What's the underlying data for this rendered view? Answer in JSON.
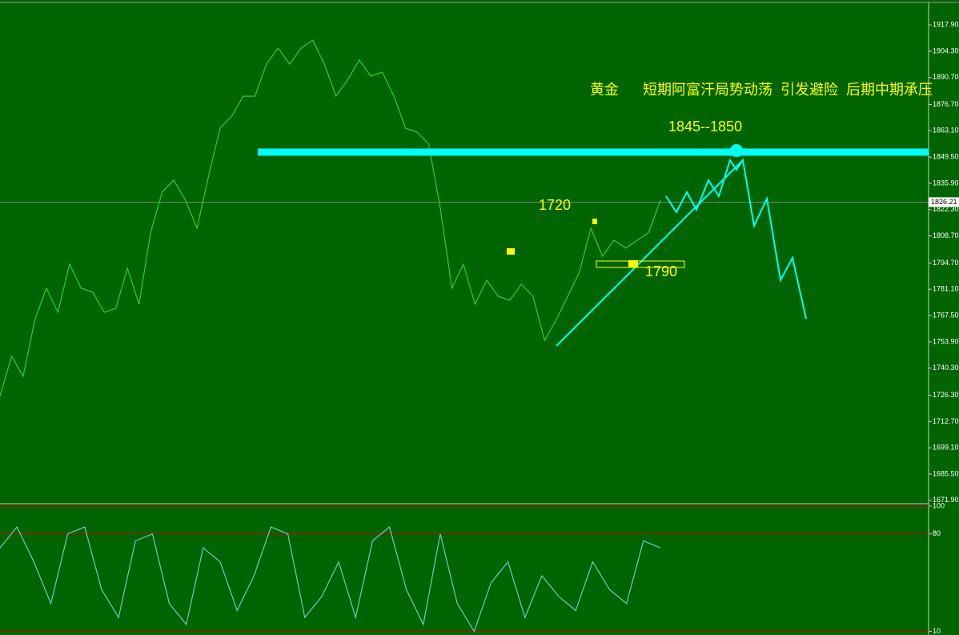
{
  "chart_data": [
    {
      "type": "line",
      "series": [
        {
          "color": "#33cc33",
          "values": [
            1725.8,
            1746.5,
            1736.1,
            1765.1,
            1781.7,
            1769.2,
            1794.1,
            1781.7,
            1779.6,
            1769.2,
            1771.3,
            1792.0,
            1773.4,
            1810.6,
            1831.4,
            1837.6,
            1827.2,
            1812.7,
            1839.6,
            1864.5,
            1870.7,
            1881.0,
            1881.0,
            1897.6,
            1905.9,
            1897.6,
            1905.9,
            1910.0,
            1897.6,
            1881.0,
            1889.3,
            1899.7,
            1891.4,
            1893.5,
            1881.0,
            1864.5,
            1862.4,
            1856.2,
            1823.1,
            1781.7,
            1794.1,
            1773.4,
            1785.8,
            1777.5,
            1775.4,
            1783.7,
            1777.5,
            1754.7,
            1765.1,
            1777.5,
            1789.9,
            1812.7,
            1798.2,
            1806.5,
            1802.4,
            1806.5,
            1810.6,
            1827.2
          ]
        }
      ],
      "ylim": [
        1670.6,
        1928.7
      ],
      "yticks": [
        {
          "value": 1917.9,
          "label": "1917.90"
        },
        {
          "value": 1904.3,
          "label": "1904.30"
        },
        {
          "value": 1890.7,
          "label": "1890.70"
        },
        {
          "value": 1876.7,
          "label": "1876.70"
        },
        {
          "value": 1863.1,
          "label": "1863.10"
        },
        {
          "value": 1849.5,
          "label": "1849.50"
        },
        {
          "value": 1835.9,
          "label": "1835.90"
        },
        {
          "value": 1822.3,
          "label": "1822.30"
        },
        {
          "value": 1808.7,
          "label": "1808.70"
        },
        {
          "value": 1794.7,
          "label": "1794.70"
        },
        {
          "value": 1781.1,
          "label": "1781.10"
        },
        {
          "value": 1767.5,
          "label": "1767.50"
        },
        {
          "value": 1753.9,
          "label": "1753.90"
        },
        {
          "value": 1740.3,
          "label": "1740.30"
        },
        {
          "value": 1726.3,
          "label": "1726.30"
        },
        {
          "value": 1712.7,
          "label": "1712.70"
        },
        {
          "value": 1699.1,
          "label": "1699.10"
        },
        {
          "value": 1685.5,
          "label": "1685.50"
        },
        {
          "value": 1671.9,
          "label": "1671.90"
        }
      ],
      "current_price": {
        "value": 1826.21,
        "label": "1826.21"
      },
      "annotations": [
        "黄金      短期阿富汗局势动荡  引发避险  后期中期承压",
        "1845--1850",
        "1720",
        "1790"
      ]
    },
    {
      "type": "line",
      "series": [
        {
          "color": "#66cccc",
          "values": [
            70,
            85,
            60,
            30,
            80,
            85,
            40,
            20,
            75,
            80,
            30,
            15,
            70,
            60,
            25,
            50,
            85,
            80,
            20,
            35,
            60,
            20,
            75,
            85,
            40,
            15,
            80,
            30,
            10,
            45,
            60,
            20,
            50,
            35,
            25,
            60,
            40,
            30,
            75,
            70
          ]
        }
      ],
      "ylim": [
        8,
        100
      ],
      "yticks": [
        100,
        80,
        10
      ],
      "level_color": "#cc0000"
    }
  ]
}
